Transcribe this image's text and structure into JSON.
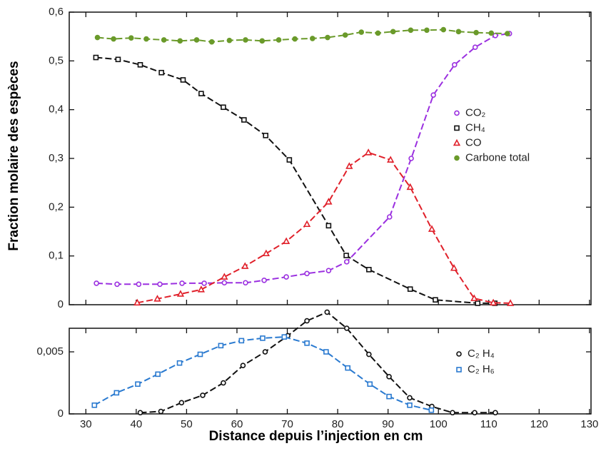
{
  "chart_data": [
    {
      "type": "line",
      "y_label": "Fraction molaire des espèces",
      "xlim": [
        26.7,
        130.3
      ],
      "xticks": [
        30,
        40,
        50,
        60,
        70,
        80,
        90,
        100,
        110,
        120,
        130
      ],
      "ylim": [
        0,
        0.6
      ],
      "yticks": [
        0,
        {
          "value": 0.1,
          "label": "0,1"
        },
        {
          "value": 0.2,
          "label": "0,2"
        },
        {
          "value": 0.3,
          "label": "0,3"
        },
        {
          "value": 0.4,
          "label": "0,4"
        },
        {
          "value": 0.5,
          "label": "0,5"
        },
        {
          "value": 0.6,
          "label": "0,6"
        }
      ],
      "legend": "center right",
      "series": [
        {
          "name": "CO₂",
          "color": "#9b30e0",
          "marker": "circle",
          "x": [
            32.1,
            36.2,
            40.5,
            44.7,
            49.1,
            53.5,
            57.5,
            61.7,
            65.4,
            69.8,
            73.9,
            78.2,
            81.8,
            90.3,
            94.6,
            99.0,
            103.2,
            107.3,
            111.3,
            114.1
          ],
          "values": [
            0.044,
            0.042,
            0.042,
            0.042,
            0.044,
            0.044,
            0.045,
            0.045,
            0.05,
            0.057,
            0.064,
            0.07,
            0.088,
            0.18,
            0.3,
            0.43,
            0.492,
            0.528,
            0.552,
            0.556
          ]
        },
        {
          "name": "CH₄",
          "color": "#111111",
          "marker": "square",
          "x": [
            32.0,
            36.4,
            40.8,
            45.0,
            49.3,
            52.9,
            57.3,
            61.4,
            65.7,
            70.4,
            78.2,
            81.7,
            86.2,
            94.4,
            99.4,
            107.8,
            111.2
          ],
          "values": [
            0.507,
            0.503,
            0.492,
            0.476,
            0.461,
            0.433,
            0.405,
            0.379,
            0.347,
            0.297,
            0.162,
            0.101,
            0.072,
            0.032,
            0.01,
            0.003,
            0.003
          ]
        },
        {
          "name": "CO",
          "color": "#e0202a",
          "marker": "triangle",
          "x": [
            40.2,
            44.2,
            48.8,
            52.9,
            57.5,
            61.6,
            65.8,
            69.8,
            73.9,
            78.2,
            82.3,
            86.1,
            90.5,
            94.4,
            98.7,
            103.1,
            107.1,
            110.9,
            114.3
          ],
          "values": [
            0.004,
            0.012,
            0.022,
            0.031,
            0.057,
            0.079,
            0.105,
            0.13,
            0.165,
            0.211,
            0.284,
            0.312,
            0.297,
            0.241,
            0.155,
            0.075,
            0.013,
            0.004,
            0.003
          ]
        },
        {
          "name": "Carbone total",
          "color": "#6a9a2a",
          "marker": "dot",
          "x": [
            32.3,
            35.5,
            39,
            42,
            45.5,
            48.7,
            52,
            55,
            58.5,
            61.7,
            65,
            68.3,
            71.5,
            75,
            78,
            81.5,
            84.7,
            88,
            91,
            94.5,
            97.7,
            101,
            104,
            107.5,
            110.5,
            113.7
          ],
          "values": [
            0.548,
            0.545,
            0.547,
            0.545,
            0.543,
            0.541,
            0.543,
            0.539,
            0.542,
            0.543,
            0.541,
            0.543,
            0.545,
            0.546,
            0.548,
            0.553,
            0.559,
            0.557,
            0.56,
            0.563,
            0.563,
            0.564,
            0.56,
            0.558,
            0.557,
            0.556
          ]
        }
      ]
    },
    {
      "type": "line",
      "x_label": "Distance depuis l’injection en cm",
      "xlim": [
        26.7,
        130.3
      ],
      "xticks": [
        30,
        40,
        50,
        60,
        70,
        80,
        90,
        100,
        110,
        120,
        130
      ],
      "ylim": [
        0,
        0.0069
      ],
      "yticks": [
        0,
        {
          "value": 0.005,
          "label": "0,005"
        }
      ],
      "legend": "upper right",
      "series": [
        {
          "name": "C₂ H₄",
          "color": "#111111",
          "marker": "circle",
          "x": [
            40.8,
            44.9,
            49.0,
            53.2,
            57.3,
            61.2,
            65.6,
            70.1,
            73.9,
            77.9,
            81.8,
            86.2,
            90.2,
            94.3,
            98.7,
            102.8,
            107.2,
            111.3
          ],
          "values": [
            0.0001,
            0.0002,
            0.0009,
            0.0015,
            0.0025,
            0.0039,
            0.005,
            0.0063,
            0.0075,
            0.0082,
            0.0069,
            0.0048,
            0.003,
            0.0013,
            0.0006,
            0.0001,
            0.0001,
            0.0001
          ]
        },
        {
          "name": "C₂ H₆",
          "color": "#2a7ad0",
          "marker": "square",
          "x": [
            31.7,
            36.1,
            40.3,
            44.3,
            48.6,
            52.7,
            56.8,
            60.9,
            65.1,
            69.4,
            73.9,
            77.7,
            82.0,
            86.4,
            90.2,
            94.3,
            98.6
          ],
          "values": [
            0.0007,
            0.0017,
            0.0024,
            0.0032,
            0.0041,
            0.0048,
            0.0055,
            0.0059,
            0.0061,
            0.0062,
            0.0057,
            0.005,
            0.0037,
            0.0024,
            0.0014,
            0.0007,
            0.0003
          ]
        }
      ]
    }
  ]
}
